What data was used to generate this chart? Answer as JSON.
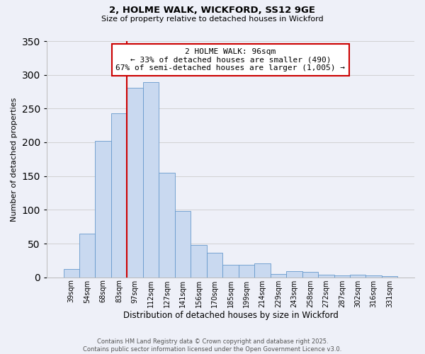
{
  "title": "2, HOLME WALK, WICKFORD, SS12 9GE",
  "subtitle": "Size of property relative to detached houses in Wickford",
  "xlabel": "Distribution of detached houses by size in Wickford",
  "ylabel": "Number of detached properties",
  "bar_labels": [
    "39sqm",
    "54sqm",
    "68sqm",
    "83sqm",
    "97sqm",
    "112sqm",
    "127sqm",
    "141sqm",
    "156sqm",
    "170sqm",
    "185sqm",
    "199sqm",
    "214sqm",
    "229sqm",
    "243sqm",
    "258sqm",
    "272sqm",
    "287sqm",
    "302sqm",
    "316sqm",
    "331sqm"
  ],
  "bar_values": [
    12,
    65,
    202,
    243,
    281,
    289,
    155,
    98,
    48,
    36,
    19,
    19,
    21,
    5,
    9,
    8,
    4,
    3,
    4,
    3,
    2
  ],
  "bar_color": "#c9d9f0",
  "bar_edge_color": "#6699cc",
  "vline_bar_index": 4,
  "vline_color": "#cc0000",
  "annotation_line1": "2 HOLME WALK: 96sqm",
  "annotation_line2": "← 33% of detached houses are smaller (490)",
  "annotation_line3": "67% of semi-detached houses are larger (1,005) →",
  "annotation_box_color": "#cc0000",
  "ylim": [
    0,
    350
  ],
  "yticks": [
    0,
    50,
    100,
    150,
    200,
    250,
    300,
    350
  ],
  "footer_line1": "Contains HM Land Registry data © Crown copyright and database right 2025.",
  "footer_line2": "Contains public sector information licensed under the Open Government Licence v3.0.",
  "background_color": "#eef0f8",
  "grid_color": "#cccccc",
  "title_fontsize": 9.5,
  "subtitle_fontsize": 8
}
